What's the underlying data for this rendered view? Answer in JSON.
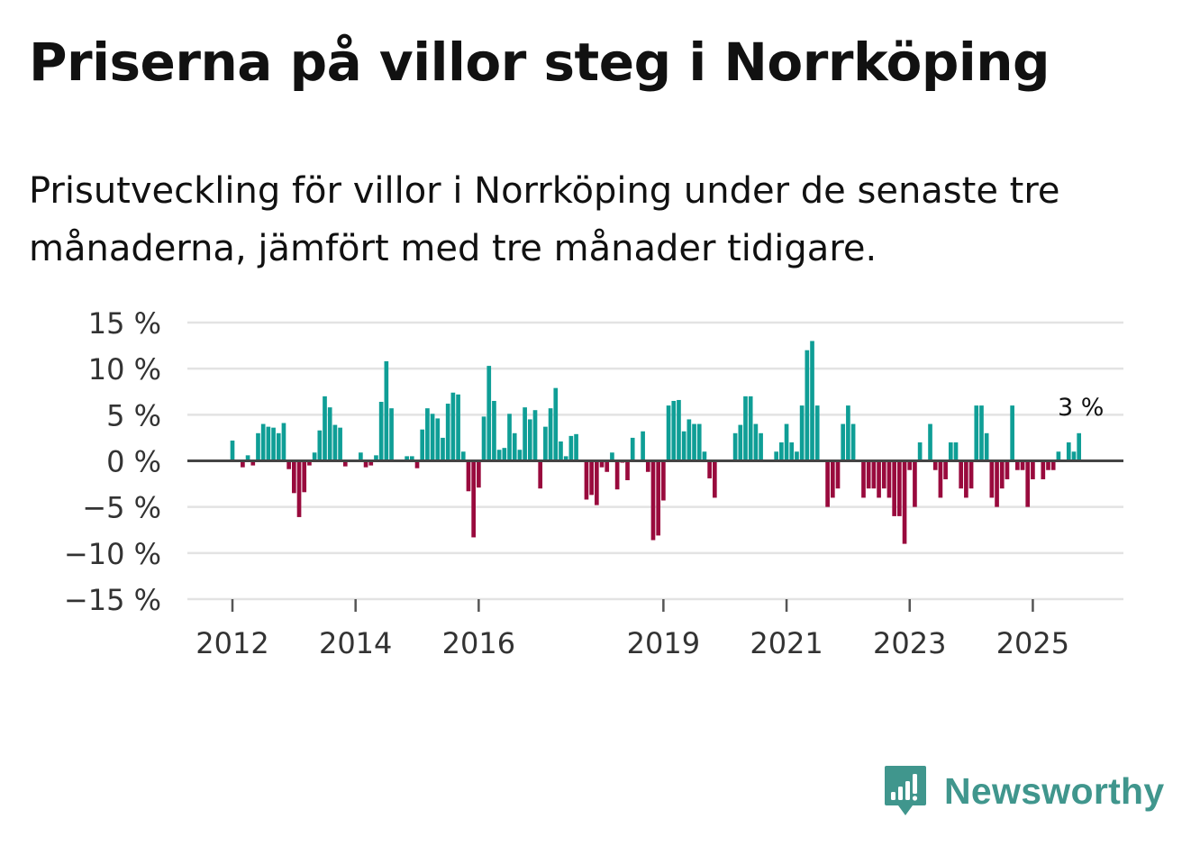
{
  "header": {
    "title": "Priserna på villor steg i Norrköping",
    "subtitle": "Prisutveckling för villor i Norrköping under de senaste tre månaderna, jämfört med tre månader tidigare."
  },
  "chart_data": {
    "type": "bar",
    "title": "Priserna på villor steg i Norrköping",
    "subtitle": "Prisutveckling för villor i Norrköping under de senaste tre månaderna, jämfört med tre månader tidigare.",
    "xlabel": "",
    "ylabel": "",
    "unit": "%",
    "ylim": [
      -15,
      15
    ],
    "yticks": [
      15,
      10,
      5,
      0,
      -5,
      -10,
      -15
    ],
    "ytick_labels": [
      "15 %",
      "10 %",
      "5 %",
      "0 %",
      "−5 %",
      "−10 %",
      "−15 %"
    ],
    "xticks": [
      {
        "label": "2012",
        "index": 0
      },
      {
        "label": "2014",
        "index": 24
      },
      {
        "label": "2016",
        "index": 48
      },
      {
        "label": "2019",
        "index": 84
      },
      {
        "label": "2021",
        "index": 108
      },
      {
        "label": "2023",
        "index": 132
      },
      {
        "label": "2025",
        "index": 156
      }
    ],
    "start": "2012-01",
    "series": [
      {
        "name": "Prisutveckling",
        "values": [
          2.2,
          0,
          -0.7,
          0.6,
          -0.5,
          3.0,
          4.0,
          3.7,
          3.6,
          3.0,
          4.1,
          -0.9,
          -3.5,
          -6.1,
          -3.4,
          -0.5,
          0.9,
          3.3,
          7.0,
          5.8,
          3.9,
          3.6,
          -0.6,
          0,
          0,
          0.9,
          -0.7,
          -0.5,
          0.6,
          6.4,
          10.8,
          5.7,
          0,
          0,
          0.5,
          0.5,
          -0.8,
          3.4,
          5.7,
          5.1,
          4.6,
          2.5,
          6.2,
          7.4,
          7.2,
          1.0,
          -3.3,
          -8.3,
          -2.9,
          4.8,
          10.3,
          6.5,
          1.2,
          1.4,
          5.1,
          3.0,
          1.2,
          5.8,
          4.5,
          5.5,
          -3.0,
          3.7,
          5.7,
          7.9,
          2.1,
          0.5,
          2.7,
          2.9,
          0,
          -4.2,
          -3.7,
          -4.8,
          -0.7,
          -1.2,
          0.9,
          -3.1,
          -0.2,
          -2.1,
          2.5,
          0,
          3.2,
          -1.2,
          -8.6,
          -8.1,
          -4.3,
          6.0,
          6.5,
          6.6,
          3.2,
          4.5,
          4.0,
          4.0,
          1.0,
          -1.9,
          -4.0,
          0,
          0,
          0,
          3.0,
          3.9,
          7.0,
          7.0,
          4.0,
          3.0,
          0,
          0,
          1.0,
          2.0,
          4.0,
          2.0,
          1.0,
          6.0,
          12.0,
          13.0,
          6.0,
          0,
          -5.0,
          -4.0,
          -3.0,
          4.0,
          6.0,
          4.0,
          0,
          -4.0,
          -3.0,
          -3.0,
          -4.0,
          -3.0,
          -4.0,
          -6.0,
          -6.0,
          -9.0,
          -1.0,
          -5.0,
          2.0,
          0,
          4.0,
          -1.0,
          -4.0,
          -2.0,
          2.0,
          2.0,
          -3.0,
          -4.0,
          -3.0,
          6.0,
          6.0,
          3.0,
          -4.0,
          -5.0,
          -3.0,
          -2.0,
          6.0,
          -1.0,
          -1.0,
          -5.0,
          -2.0,
          0,
          -2.0,
          -1.0,
          -1.0,
          1.0,
          0,
          2.0,
          1.0,
          3.0
        ]
      }
    ],
    "annotations": [
      {
        "index": 165,
        "text": "3 %"
      }
    ],
    "colors": {
      "positive": "#0f9e96",
      "negative": "#990a3d",
      "grid": "#e3e3e3",
      "zero_line": "#444444"
    }
  },
  "footer": {
    "brand": "Newsworthy",
    "logo_icon": "newsworthy-logo-icon",
    "brand_color": "#40968d"
  }
}
